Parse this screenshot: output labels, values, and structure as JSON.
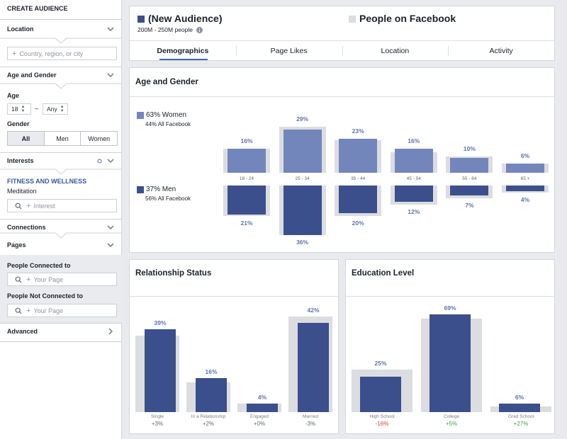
{
  "sidebar": {
    "title": "CREATE AUDIENCE",
    "location": {
      "label": "Location",
      "placeholder": "Country, region, or city"
    },
    "age_gender": {
      "label": "Age and Gender",
      "age_label": "Age",
      "age_min": "18",
      "dash": "–",
      "age_max": "Any",
      "gender_label": "Gender",
      "gender_options": [
        "All",
        "Men",
        "Women"
      ]
    },
    "interests": {
      "label": "Interests",
      "category": "FITNESS AND WELLNESS",
      "item": "Meditation",
      "placeholder": "Interest"
    },
    "connections": {
      "label": "Connections"
    },
    "pages": {
      "label": "Pages",
      "connected_label": "People Connected to",
      "connected_placeholder": "Your Page",
      "not_connected_label": "People Not Connected to",
      "not_connected_placeholder": "Your Page"
    },
    "advanced": {
      "label": "Advanced"
    }
  },
  "header": {
    "audience_title": "(New Audience)",
    "audience_size": "200M - 250M people",
    "compare_title": "People on Facebook",
    "audience_color": "#3b4f8c",
    "compare_color": "#dcdde0"
  },
  "tabs": [
    "Demographics",
    "Page Likes",
    "Location",
    "Activity"
  ],
  "age_gender_card": {
    "title": "Age and Gender",
    "women_legend": "63% Women",
    "women_sub": "44% All Facebook",
    "men_legend": "37% Men",
    "men_sub": "56% All Facebook",
    "women_color": "#7386bc",
    "men_color": "#3b4f8c"
  },
  "relationship_card": {
    "title": "Relationship Status"
  },
  "education_card": {
    "title": "Education Level"
  },
  "chart_data": [
    {
      "type": "bar",
      "title": "Age and Gender",
      "categories": [
        "18 - 24",
        "25 - 34",
        "35 - 44",
        "45 - 54",
        "55 - 64",
        "65 +"
      ],
      "series": [
        {
          "name": "Women",
          "values": [
            16,
            29,
            23,
            16,
            10,
            6
          ],
          "labels": [
            "16%",
            "29%",
            "23%",
            "16%",
            "10%",
            "6%"
          ]
        },
        {
          "name": "Men",
          "values": [
            21,
            36,
            20,
            12,
            7,
            4
          ],
          "labels": [
            "21%",
            "36%",
            "20%",
            "12%",
            "7%",
            "4%"
          ]
        }
      ],
      "comparison_women": [
        16,
        31,
        22,
        14,
        11,
        6
      ],
      "comparison_men": [
        22,
        36,
        22,
        14,
        9,
        5
      ]
    },
    {
      "type": "bar",
      "title": "Relationship Status",
      "categories": [
        "Single",
        "In a Relationship",
        "Engaged",
        "Married"
      ],
      "values": [
        39,
        16,
        4,
        42
      ],
      "labels": [
        "39%",
        "16%",
        "4%",
        "42%"
      ],
      "deltas": [
        "+3%",
        "+2%",
        "+0%",
        "-3%"
      ],
      "comparison": [
        36,
        14,
        4,
        45
      ]
    },
    {
      "type": "bar",
      "title": "Education Level",
      "categories": [
        "High School",
        "College",
        "Grad School"
      ],
      "values": [
        25,
        69,
        6
      ],
      "labels": [
        "25%",
        "69%",
        "6%"
      ],
      "deltas": [
        "-16%",
        "+5%",
        "+27%"
      ],
      "comparison": [
        30,
        66,
        4
      ]
    }
  ]
}
